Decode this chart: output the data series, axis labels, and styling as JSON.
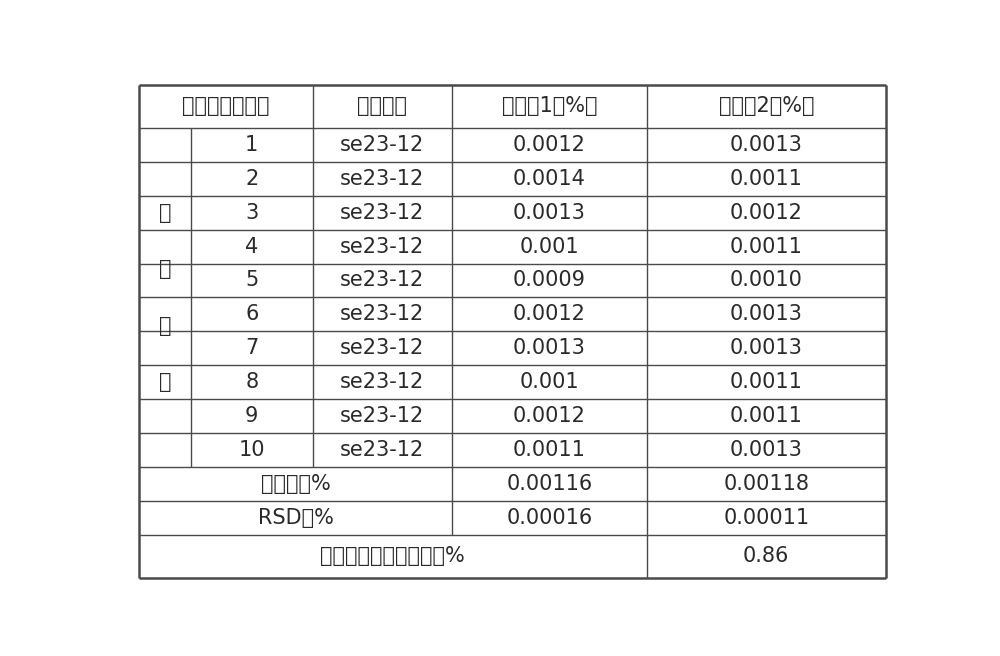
{
  "header": [
    "平行样品编号号",
    "试样编号",
    "测定偃1（%）",
    "测定偃2（%）"
  ],
  "rows": [
    [
      "1",
      "se23-12",
      "0.0012",
      "0.0013"
    ],
    [
      "2",
      "se23-12",
      "0.0014",
      "0.0011"
    ],
    [
      "3",
      "se23-12",
      "0.0013",
      "0.0012"
    ],
    [
      "4",
      "se23-12",
      "0.001",
      "0.0011"
    ],
    [
      "5",
      "se23-12",
      "0.0009",
      "0.0010"
    ],
    [
      "6",
      "se23-12",
      "0.0012",
      "0.0013"
    ],
    [
      "7",
      "se23-12",
      "0.0013",
      "0.0013"
    ],
    [
      "8",
      "se23-12",
      "0.001",
      "0.0011"
    ],
    [
      "9",
      "se23-12",
      "0.0012",
      "0.0011"
    ],
    [
      "10",
      "se23-12",
      "0.0011",
      "0.0013"
    ]
  ],
  "avg_row": [
    "平均値，%",
    "0.00116",
    "0.00118"
  ],
  "rsd_row": [
    "RSD，%",
    "0.00016",
    "0.00011"
  ],
  "last_row": [
    "平行样相对标准偏差，%",
    "0.86"
  ],
  "left_label": [
    "测",
    "定",
    "结",
    "果"
  ],
  "bg_color": "#ffffff",
  "line_color": "#4a4a4a",
  "text_color": "#2a2a2a",
  "font_size": 15,
  "border_lw": 1.8,
  "inner_lw": 1.0
}
